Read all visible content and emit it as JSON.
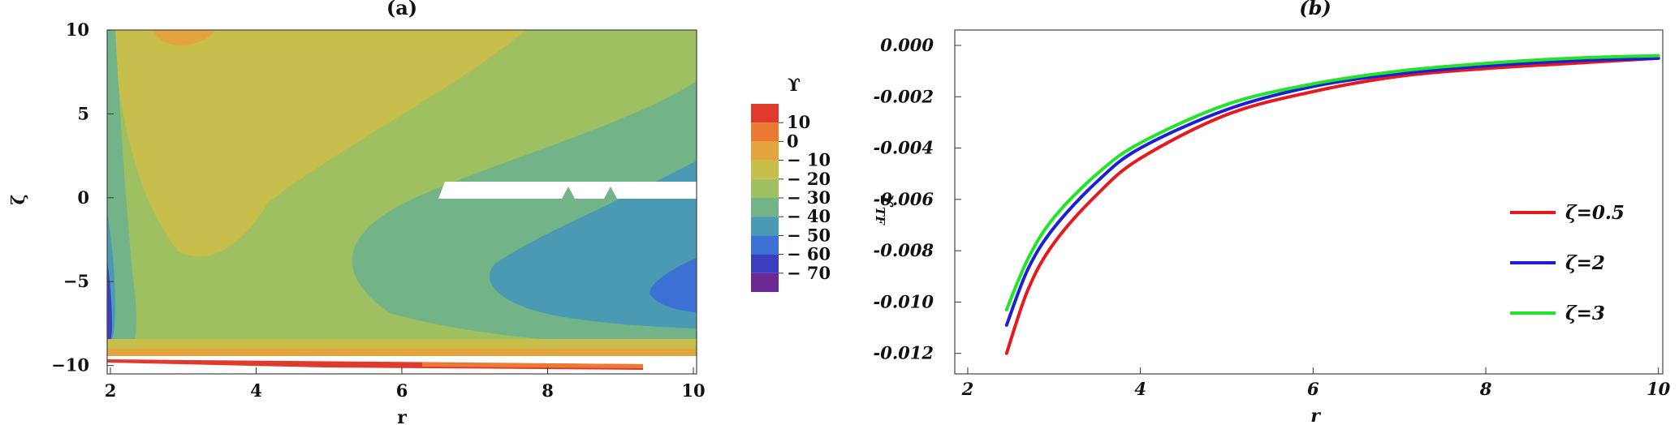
{
  "chart_data": [
    {
      "panel": "a",
      "type": "heatmap",
      "title": "(a)",
      "xlabel": "r",
      "ylabel": "ζ",
      "xlim": [
        2,
        10
      ],
      "ylim": [
        -10.5,
        10
      ],
      "x_ticks": [
        {
          "value": 2,
          "label": "2"
        },
        {
          "value": 4,
          "label": "4"
        },
        {
          "value": 6,
          "label": "6"
        },
        {
          "value": 8,
          "label": "8"
        },
        {
          "value": 10,
          "label": "10"
        }
      ],
      "y_ticks": [
        {
          "value": 10,
          "label": "10"
        },
        {
          "value": 5,
          "label": "5"
        },
        {
          "value": 0,
          "label": "0"
        },
        {
          "value": -5,
          "label": "−5"
        },
        {
          "value": -10,
          "label": "−10"
        }
      ],
      "colorbar": {
        "title": "ϒ",
        "side_label": "ϒ_TF",
        "ticks": [
          {
            "value": 10,
            "label": "10"
          },
          {
            "value": 0,
            "label": "0"
          },
          {
            "value": -10,
            "label": "− 10"
          },
          {
            "value": -20,
            "label": "− 20"
          },
          {
            "value": -30,
            "label": "− 30"
          },
          {
            "value": -40,
            "label": "− 40"
          },
          {
            "value": -50,
            "label": "− 50"
          },
          {
            "value": -60,
            "label": "− 60"
          },
          {
            "value": -70,
            "label": "− 70"
          }
        ],
        "bands": [
          {
            "min": 10,
            "max": 20,
            "color": "#e03a2f"
          },
          {
            "min": 0,
            "max": 10,
            "color": "#ec7a33"
          },
          {
            "min": -10,
            "max": 0,
            "color": "#e3a43e"
          },
          {
            "min": -20,
            "max": -10,
            "color": "#c8be4c"
          },
          {
            "min": -30,
            "max": -20,
            "color": "#9fc061"
          },
          {
            "min": -40,
            "max": -30,
            "color": "#72b487"
          },
          {
            "min": -50,
            "max": -40,
            "color": "#4a9ab4"
          },
          {
            "min": -60,
            "max": -50,
            "color": "#3c70d3"
          },
          {
            "min": -70,
            "max": -60,
            "color": "#3a3fc2"
          },
          {
            "min": -80,
            "max": -70,
            "color": "#6b2a93"
          }
        ]
      }
    },
    {
      "panel": "b",
      "type": "line",
      "title": "(b)",
      "xlabel": "r",
      "ylabel": "",
      "xlim": [
        1.85,
        10.05
      ],
      "ylim": [
        -0.0128,
        0.0006
      ],
      "x_ticks": [
        {
          "value": 2,
          "label": "2"
        },
        {
          "value": 4,
          "label": "4"
        },
        {
          "value": 6,
          "label": "6"
        },
        {
          "value": 8,
          "label": "8"
        },
        {
          "value": 10,
          "label": "10"
        }
      ],
      "y_ticks": [
        {
          "value": 0,
          "label": "0.000"
        },
        {
          "value": -0.002,
          "label": "-0.002"
        },
        {
          "value": -0.004,
          "label": "-0.004"
        },
        {
          "value": -0.006,
          "label": "-0.006"
        },
        {
          "value": -0.008,
          "label": "-0.008"
        },
        {
          "value": -0.01,
          "label": "-0.010"
        },
        {
          "value": -0.012,
          "label": "-0.012"
        }
      ],
      "legend_position": "right",
      "series": [
        {
          "name": "ζ=0.5",
          "color": "#e8191e",
          "x": [
            2.45,
            2.7,
            3.0,
            3.5,
            4.0,
            5.0,
            6.0,
            7.0,
            8.0,
            9.0,
            10.0
          ],
          "y": [
            -0.012,
            -0.0095,
            -0.0077,
            -0.0058,
            -0.0044,
            -0.0027,
            -0.0018,
            -0.0012,
            -0.0009,
            -0.0007,
            -0.0005
          ]
        },
        {
          "name": "ζ=2",
          "color": "#1d1ed6",
          "x": [
            2.45,
            2.7,
            3.0,
            3.5,
            4.0,
            5.0,
            6.0,
            7.0,
            8.0,
            9.0,
            10.0
          ],
          "y": [
            -0.0109,
            -0.0087,
            -0.0071,
            -0.0053,
            -0.004,
            -0.0025,
            -0.0016,
            -0.0011,
            -0.0008,
            -0.0006,
            -0.0005
          ]
        },
        {
          "name": "ζ=3",
          "color": "#22e52a",
          "x": [
            2.45,
            2.7,
            3.0,
            3.5,
            4.0,
            5.0,
            6.0,
            7.0,
            8.0,
            9.0,
            10.0
          ],
          "y": [
            -0.0103,
            -0.0083,
            -0.0067,
            -0.005,
            -0.0038,
            -0.0023,
            -0.0015,
            -0.001,
            -0.0007,
            -0.0005,
            -0.0004
          ]
        }
      ]
    }
  ]
}
